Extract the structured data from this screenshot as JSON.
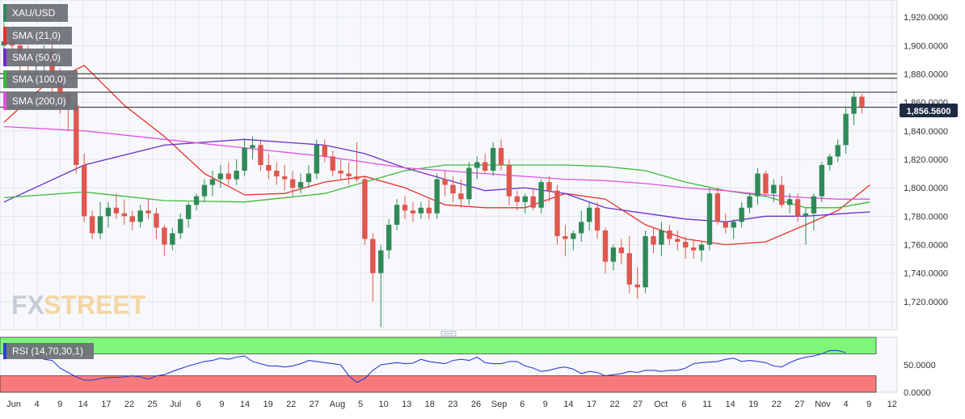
{
  "colors": {
    "background": "#f7f8fb",
    "grid": "#e3e6ee",
    "bull": "#2e8b57",
    "bear": "#e0574f",
    "sma21": "#e8302a",
    "sma50": "#6a2ed0",
    "sma100": "#3bb83b",
    "sma200": "#e64ee0",
    "rsi_line": "#2a3fd6",
    "rsi_overbought": "#7ff57a",
    "rsi_oversold": "#f77a7a",
    "resistance": "#222222",
    "price_tag": "#1f2a44"
  },
  "watermark": {
    "part1": "FX",
    "part2": "STREET"
  },
  "divider_icon": "drag-handle-icon",
  "chart_data": [
    {
      "type": "candlestick",
      "symbol": "XAU/USD",
      "last_price_label": "1,856.5600",
      "ylim": [
        1700,
        1932
      ],
      "y_ticks": [
        1720,
        1740,
        1760,
        1780,
        1800,
        1820,
        1840,
        1860,
        1880,
        1900,
        1920
      ],
      "y_tick_labels": [
        "1,720.0000",
        "1,740.0000",
        "1,760.0000",
        "1,780.0000",
        "1,800.0000",
        "1,820.0000",
        "1,840.0000",
        "1,860.0000",
        "1,880.0000",
        "1,900.0000",
        "1,920.0000"
      ],
      "x_tick_labels": [
        "Jun",
        "4",
        "9",
        "14",
        "17",
        "22",
        "25",
        "Jul",
        "6",
        "9",
        "14",
        "19",
        "22",
        "27",
        "Aug",
        "5",
        "10",
        "13",
        "18",
        "23",
        "26",
        "Sep",
        "6",
        "9",
        "14",
        "17",
        "22",
        "27",
        "Oct",
        "6",
        "11",
        "14",
        "19",
        "22",
        "27",
        "Nov",
        "4",
        "9",
        "12"
      ],
      "legend": [
        "XAU/USD",
        "SMA (21,0)",
        "SMA (50,0)",
        "SMA (100,0)",
        "SMA (200,0)"
      ],
      "resistance_lines": [
        1880.2,
        1877.0,
        1867.2,
        1856.56
      ],
      "candles": [
        [
          1900,
          1916,
          1896,
          1903
        ],
        [
          1903,
          1910,
          1888,
          1900
        ],
        [
          1900,
          1902,
          1872,
          1895
        ],
        [
          1894,
          1900,
          1880,
          1890
        ],
        [
          1890,
          1896,
          1870,
          1892
        ],
        [
          1892,
          1900,
          1874,
          1896
        ],
        [
          1896,
          1902,
          1862,
          1880
        ],
        [
          1880,
          1884,
          1852,
          1866
        ],
        [
          1866,
          1868,
          1840,
          1858
        ],
        [
          1858,
          1862,
          1810,
          1816
        ],
        [
          1816,
          1824,
          1776,
          1780
        ],
        [
          1780,
          1784,
          1764,
          1768
        ],
        [
          1768,
          1790,
          1764,
          1780
        ],
        [
          1780,
          1790,
          1772,
          1786
        ],
        [
          1786,
          1796,
          1778,
          1782
        ],
        [
          1782,
          1792,
          1774,
          1780
        ],
        [
          1780,
          1784,
          1770,
          1776
        ],
        [
          1776,
          1788,
          1772,
          1784
        ],
        [
          1784,
          1792,
          1778,
          1782
        ],
        [
          1782,
          1786,
          1764,
          1772
        ],
        [
          1772,
          1774,
          1752,
          1760
        ],
        [
          1760,
          1772,
          1756,
          1768
        ],
        [
          1768,
          1782,
          1764,
          1778
        ],
        [
          1778,
          1790,
          1772,
          1788
        ],
        [
          1788,
          1796,
          1784,
          1794
        ],
        [
          1794,
          1806,
          1790,
          1802
        ],
        [
          1802,
          1812,
          1794,
          1806
        ],
        [
          1806,
          1816,
          1800,
          1810
        ],
        [
          1810,
          1818,
          1802,
          1806
        ],
        [
          1806,
          1820,
          1802,
          1812
        ],
        [
          1812,
          1834,
          1808,
          1828
        ],
        [
          1828,
          1836,
          1820,
          1830
        ],
        [
          1830,
          1834,
          1812,
          1816
        ],
        [
          1816,
          1824,
          1806,
          1812
        ],
        [
          1812,
          1818,
          1802,
          1808
        ],
        [
          1808,
          1816,
          1798,
          1806
        ],
        [
          1806,
          1812,
          1794,
          1800
        ],
        [
          1800,
          1810,
          1796,
          1804
        ],
        [
          1804,
          1816,
          1800,
          1810
        ],
        [
          1810,
          1834,
          1806,
          1830
        ],
        [
          1830,
          1834,
          1818,
          1822
        ],
        [
          1822,
          1826,
          1808,
          1812
        ],
        [
          1812,
          1820,
          1806,
          1810
        ],
        [
          1810,
          1818,
          1802,
          1808
        ],
        [
          1808,
          1832,
          1804,
          1806
        ],
        [
          1806,
          1808,
          1760,
          1764
        ],
        [
          1764,
          1768,
          1720,
          1740
        ],
        [
          1740,
          1760,
          1702,
          1756
        ],
        [
          1756,
          1778,
          1750,
          1774
        ],
        [
          1774,
          1792,
          1770,
          1788
        ],
        [
          1788,
          1794,
          1778,
          1784
        ],
        [
          1784,
          1790,
          1776,
          1782
        ],
        [
          1782,
          1790,
          1778,
          1786
        ],
        [
          1786,
          1792,
          1778,
          1782
        ],
        [
          1782,
          1810,
          1778,
          1806
        ],
        [
          1806,
          1812,
          1794,
          1802
        ],
        [
          1802,
          1808,
          1790,
          1796
        ],
        [
          1796,
          1806,
          1786,
          1792
        ],
        [
          1792,
          1818,
          1788,
          1814
        ],
        [
          1814,
          1822,
          1806,
          1818
        ],
        [
          1818,
          1824,
          1810,
          1812
        ],
        [
          1812,
          1832,
          1808,
          1828
        ],
        [
          1828,
          1834,
          1812,
          1816
        ],
        [
          1816,
          1820,
          1788,
          1794
        ],
        [
          1794,
          1798,
          1784,
          1790
        ],
        [
          1790,
          1796,
          1782,
          1794
        ],
        [
          1794,
          1800,
          1784,
          1786
        ],
        [
          1786,
          1806,
          1782,
          1804
        ],
        [
          1804,
          1808,
          1790,
          1798
        ],
        [
          1798,
          1802,
          1760,
          1766
        ],
        [
          1766,
          1774,
          1752,
          1764
        ],
        [
          1764,
          1770,
          1756,
          1768
        ],
        [
          1768,
          1784,
          1762,
          1776
        ],
        [
          1776,
          1790,
          1770,
          1786
        ],
        [
          1786,
          1790,
          1764,
          1770
        ],
        [
          1770,
          1772,
          1740,
          1748
        ],
        [
          1748,
          1760,
          1742,
          1758
        ],
        [
          1758,
          1764,
          1746,
          1754
        ],
        [
          1754,
          1766,
          1726,
          1732
        ],
        [
          1732,
          1744,
          1722,
          1730
        ],
        [
          1730,
          1770,
          1726,
          1766
        ],
        [
          1766,
          1772,
          1754,
          1760
        ],
        [
          1760,
          1776,
          1752,
          1770
        ],
        [
          1770,
          1774,
          1760,
          1764
        ],
        [
          1764,
          1770,
          1756,
          1762
        ],
        [
          1762,
          1766,
          1750,
          1758
        ],
        [
          1758,
          1764,
          1750,
          1756
        ],
        [
          1756,
          1762,
          1748,
          1760
        ],
        [
          1760,
          1800,
          1756,
          1796
        ],
        [
          1796,
          1800,
          1774,
          1776
        ],
        [
          1776,
          1782,
          1768,
          1772
        ],
        [
          1772,
          1778,
          1764,
          1776
        ],
        [
          1776,
          1790,
          1772,
          1786
        ],
        [
          1786,
          1796,
          1782,
          1794
        ],
        [
          1794,
          1814,
          1788,
          1810
        ],
        [
          1810,
          1812,
          1794,
          1796
        ],
        [
          1796,
          1806,
          1790,
          1802
        ],
        [
          1802,
          1808,
          1786,
          1788
        ],
        [
          1788,
          1796,
          1782,
          1792
        ],
        [
          1792,
          1796,
          1776,
          1780
        ],
        [
          1780,
          1786,
          1760,
          1782
        ],
        [
          1782,
          1796,
          1770,
          1794
        ],
        [
          1794,
          1818,
          1790,
          1816
        ],
        [
          1816,
          1824,
          1812,
          1822
        ],
        [
          1822,
          1834,
          1818,
          1830
        ],
        [
          1830,
          1856,
          1824,
          1852
        ],
        [
          1852,
          1868,
          1844,
          1864
        ],
        [
          1864,
          1866,
          1852,
          1857
        ]
      ],
      "sma": [
        {
          "name": "SMA (21,0)",
          "points": [
            [
              0,
              1846
            ],
            [
              5,
              1872
            ],
            [
              10,
              1886
            ],
            [
              15,
              1858
            ],
            [
              20,
              1836
            ],
            [
              25,
              1810
            ],
            [
              30,
              1795
            ],
            [
              35,
              1796
            ],
            [
              40,
              1804
            ],
            [
              45,
              1808
            ],
            [
              50,
              1800
            ],
            [
              55,
              1788
            ],
            [
              60,
              1786
            ],
            [
              65,
              1786
            ],
            [
              70,
              1796
            ],
            [
              75,
              1792
            ],
            [
              80,
              1774
            ],
            [
              85,
              1764
            ],
            [
              90,
              1760
            ],
            [
              95,
              1762
            ],
            [
              100,
              1774
            ],
            [
              104,
              1784
            ],
            [
              108,
              1802
            ]
          ]
        },
        {
          "name": "SMA (50,0)",
          "points": [
            [
              0,
              1790
            ],
            [
              10,
              1816
            ],
            [
              20,
              1830
            ],
            [
              30,
              1834
            ],
            [
              40,
              1830
            ],
            [
              45,
              1824
            ],
            [
              50,
              1814
            ],
            [
              55,
              1806
            ],
            [
              60,
              1798
            ],
            [
              65,
              1800
            ],
            [
              70,
              1796
            ],
            [
              75,
              1786
            ],
            [
              80,
              1782
            ],
            [
              85,
              1778
            ],
            [
              90,
              1776
            ],
            [
              95,
              1780
            ],
            [
              100,
              1780
            ],
            [
              105,
              1782
            ],
            [
              108,
              1783
            ]
          ]
        },
        {
          "name": "SMA (100,0)",
          "points": [
            [
              0,
              1793
            ],
            [
              10,
              1797
            ],
            [
              20,
              1791
            ],
            [
              30,
              1790
            ],
            [
              40,
              1796
            ],
            [
              45,
              1804
            ],
            [
              50,
              1812
            ],
            [
              55,
              1816
            ],
            [
              60,
              1816
            ],
            [
              65,
              1816
            ],
            [
              70,
              1816
            ],
            [
              75,
              1815
            ],
            [
              80,
              1812
            ],
            [
              85,
              1804
            ],
            [
              90,
              1798
            ],
            [
              95,
              1794
            ],
            [
              100,
              1786
            ],
            [
              104,
              1786
            ],
            [
              108,
              1790
            ]
          ]
        },
        {
          "name": "SMA (200,0)",
          "points": [
            [
              0,
              1843
            ],
            [
              10,
              1840
            ],
            [
              20,
              1834
            ],
            [
              30,
              1828
            ],
            [
              40,
              1822
            ],
            [
              45,
              1818
            ],
            [
              50,
              1814
            ],
            [
              55,
              1812
            ],
            [
              60,
              1810
            ],
            [
              65,
              1808
            ],
            [
              70,
              1806
            ],
            [
              75,
              1805
            ],
            [
              80,
              1803
            ],
            [
              85,
              1800
            ],
            [
              90,
              1798
            ],
            [
              95,
              1795
            ],
            [
              100,
              1793
            ],
            [
              104,
              1792
            ],
            [
              108,
              1792
            ]
          ]
        }
      ]
    },
    {
      "type": "line",
      "indicator": "RSI (14,70,30,1)",
      "ylim": [
        0,
        100
      ],
      "overbought": 70,
      "oversold": 30,
      "y_tick_labels": [
        "50.0000",
        "0.0000"
      ],
      "y_ticks": [
        50,
        0
      ],
      "values": [
        85,
        82,
        80,
        76,
        66,
        60,
        58,
        44,
        36,
        28,
        22,
        22,
        25,
        27,
        27,
        28,
        30,
        28,
        24,
        30,
        32,
        38,
        43,
        48,
        52,
        56,
        58,
        62,
        60,
        64,
        66,
        56,
        52,
        48,
        48,
        46,
        48,
        52,
        58,
        56,
        54,
        52,
        50,
        30,
        18,
        25,
        40,
        50,
        52,
        54,
        52,
        53,
        60,
        56,
        54,
        52,
        58,
        60,
        58,
        64,
        54,
        52,
        52,
        56,
        56,
        48,
        44,
        38,
        40,
        44,
        46,
        42,
        34,
        38,
        36,
        30,
        32,
        34,
        38,
        36,
        40,
        40,
        38,
        40,
        40,
        44,
        52,
        54,
        55,
        56,
        60,
        62,
        56,
        58,
        56,
        54,
        48,
        46,
        54,
        60,
        64,
        66,
        70,
        76,
        76,
        72
      ]
    }
  ]
}
